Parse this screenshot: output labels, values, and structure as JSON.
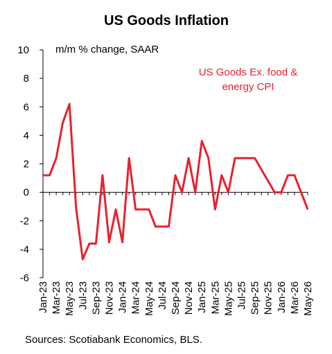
{
  "chart_data": {
    "type": "line",
    "title": "US Goods Inflation",
    "y_label": "m/m % change, SAAR",
    "source": "Sources: Scotiabank Economics, BLS.",
    "categories": [
      "Jan-23",
      null,
      "Mar-23",
      null,
      "May-23",
      null,
      "Jul-23",
      null,
      "Sep-23",
      null,
      "Nov-23",
      null,
      "Jan-24",
      null,
      "Mar-24",
      null,
      "May-24",
      null,
      "Jul-24",
      null,
      "Sep-24",
      null,
      "Nov-24",
      null,
      "Jan-25",
      null,
      "Mar-25",
      null,
      "May-25",
      null,
      "Jul-25",
      null,
      "Sep-25",
      null,
      "Nov-25",
      null,
      "Jan-26",
      null,
      "Mar-26",
      null,
      "May-26"
    ],
    "series": [
      {
        "name": "US Goods Ex. food & energy CPI",
        "color": "#e8202e",
        "values": [
          1.2,
          1.2,
          2.4,
          4.9,
          6.2,
          -1.1,
          -4.7,
          -3.6,
          -3.6,
          1.2,
          -3.5,
          -1.2,
          -3.5,
          2.4,
          -1.2,
          -1.2,
          -1.2,
          -2.4,
          -2.4,
          -2.4,
          1.2,
          0,
          2.4,
          0,
          3.6,
          2.4,
          -1.2,
          1.2,
          0,
          2.4,
          2.4,
          2.4,
          2.4,
          1.6,
          0.8,
          0,
          0,
          1.2,
          1.2,
          0,
          -1.2
        ]
      }
    ],
    "ylim": [
      -6,
      10
    ],
    "yticks": [
      -6,
      -4,
      -2,
      0,
      2,
      4,
      6,
      8,
      10
    ],
    "grid": false
  }
}
